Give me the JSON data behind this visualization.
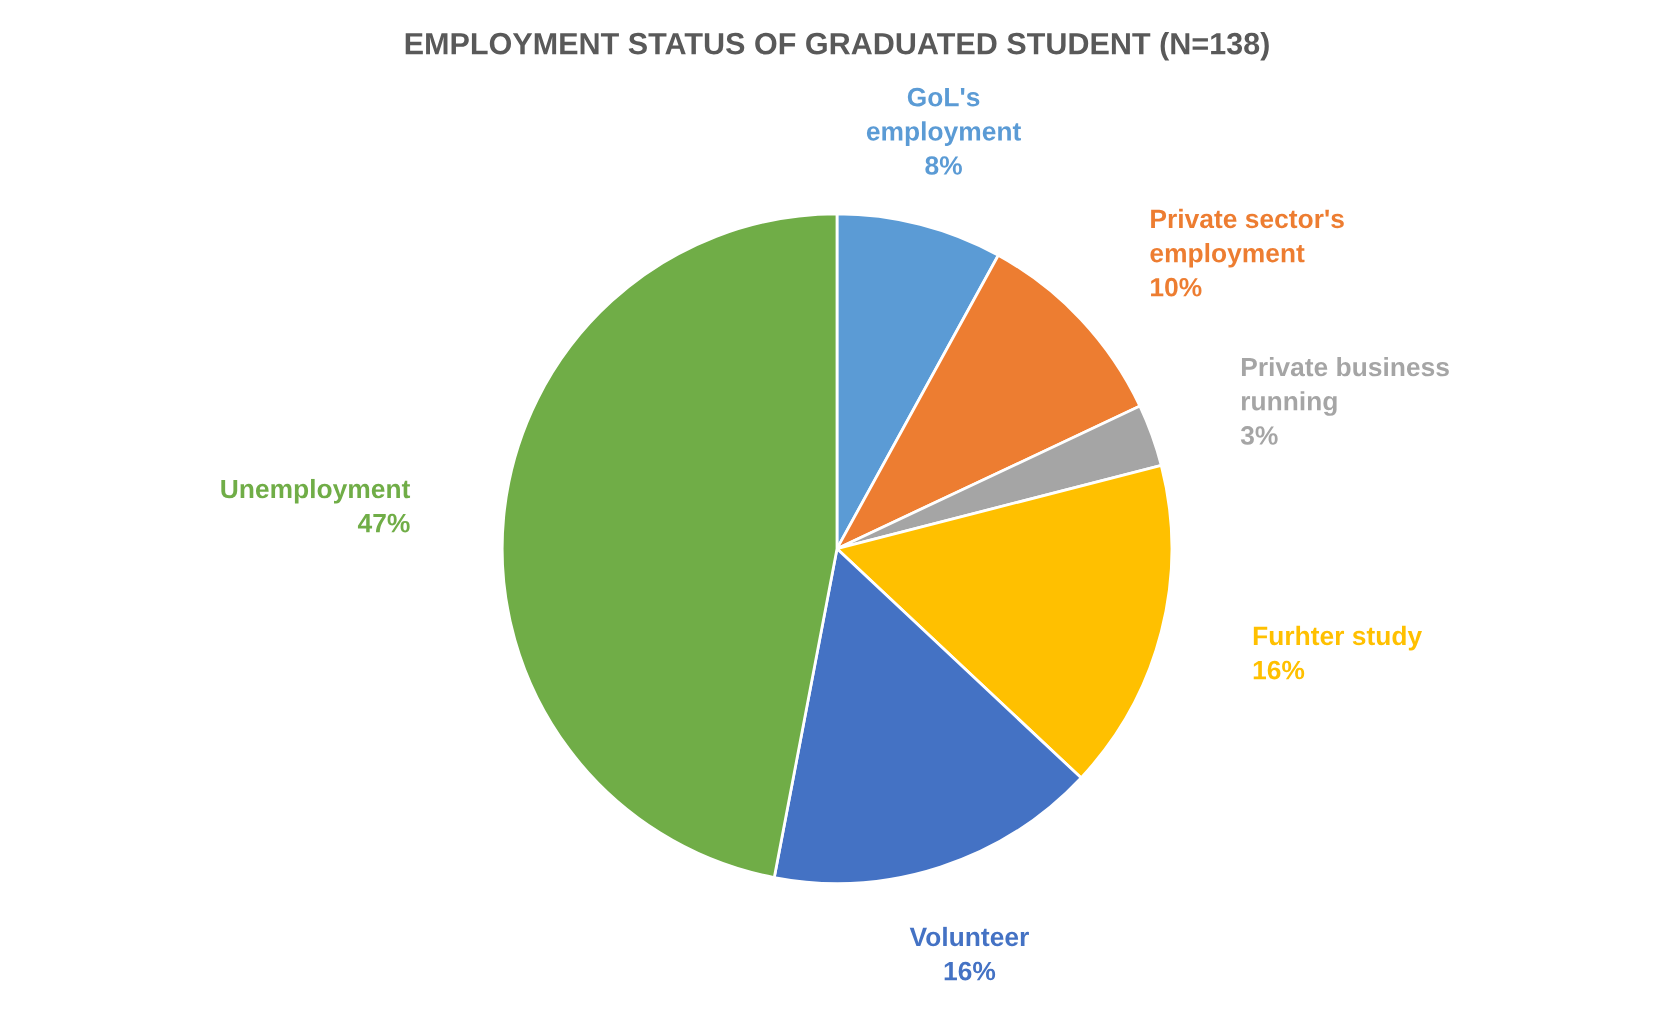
{
  "chart_data": {
    "type": "pie",
    "title": "EMPLOYMENT STATUS OF GRADUATED STUDENT (N=138)",
    "categories": [
      "GoL's\nemployment",
      "Private sector's\nemployment",
      "Private business\nrunning",
      "Furhter study",
      "Volunteer",
      "Unemployment"
    ],
    "values": [
      8,
      10,
      3,
      16,
      16,
      47
    ],
    "colors": [
      "#5b9bd5",
      "#ed7d31",
      "#a5a5a5",
      "#ffc000",
      "#4472c4",
      "#70ad47"
    ],
    "value_labels": [
      "8%",
      "10%",
      "3%",
      "16%",
      "16%",
      "47%"
    ],
    "legend": false
  }
}
